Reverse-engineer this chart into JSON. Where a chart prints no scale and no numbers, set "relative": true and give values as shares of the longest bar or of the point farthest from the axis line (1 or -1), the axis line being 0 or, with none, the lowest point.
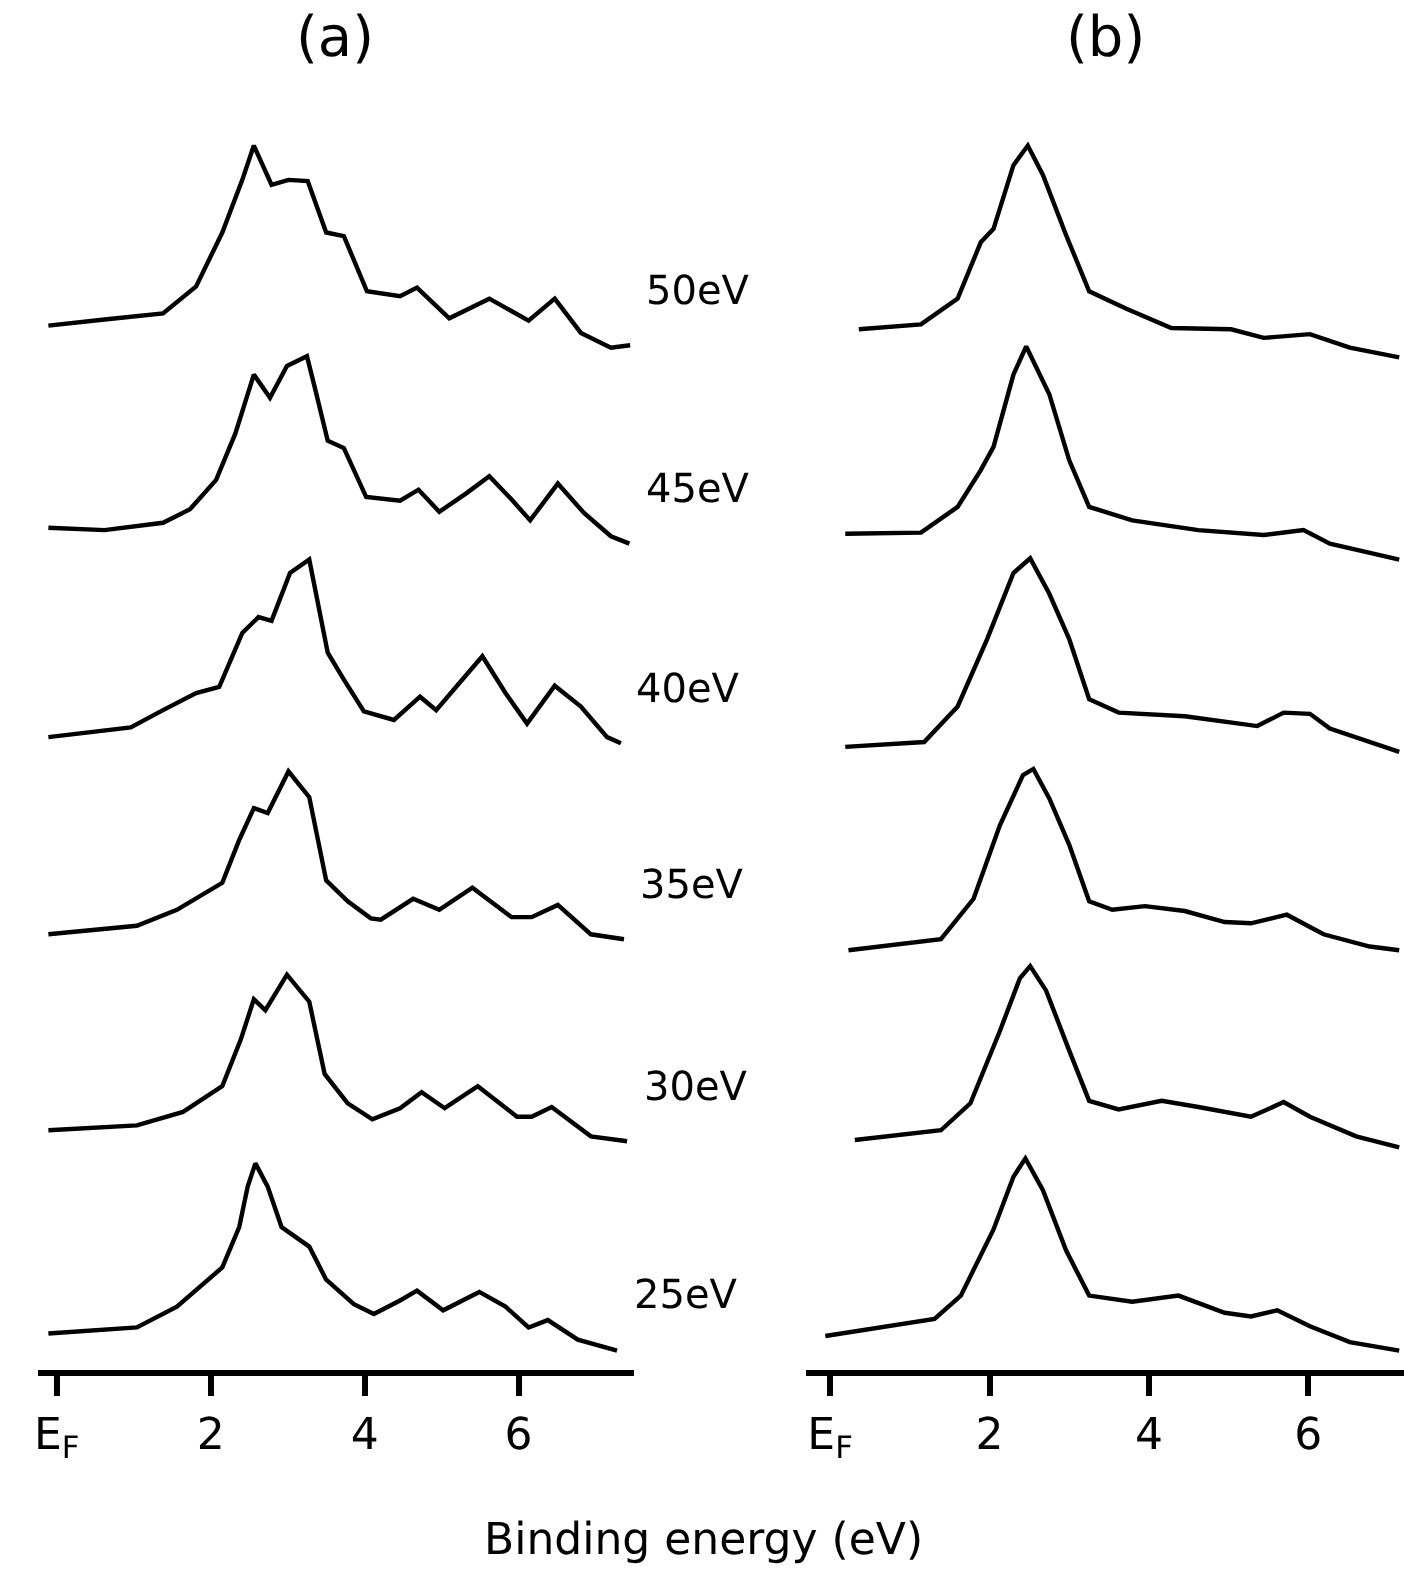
{
  "chart_data": [
    {
      "type": "line",
      "title": "(a)",
      "xlabel": "Binding energy (eV)",
      "relative": true,
      "marker": "none",
      "line_style": "solid",
      "xlim": [
        -0.25,
        7.5
      ],
      "xticks": [
        {
          "value": 0,
          "label": "E$_{F}$"
        },
        2,
        4,
        6
      ],
      "series": [
        {
          "name": "50eV",
          "color": "#000000",
          "x": [
            -0.11,
            0.62,
            1.38,
            1.81,
            2.15,
            2.41,
            2.56,
            2.79,
            3.01,
            3.26,
            3.5,
            3.73,
            4.03,
            4.46,
            4.68,
            5.1,
            5.62,
            6.13,
            6.47,
            6.81,
            7.2,
            7.45
          ],
          "values": [
            0.853,
            0.858,
            0.863,
            0.885,
            0.929,
            0.972,
            1.0,
            0.968,
            0.972,
            0.971,
            0.929,
            0.926,
            0.881,
            0.877,
            0.884,
            0.859,
            0.875,
            0.857,
            0.875,
            0.847,
            0.835,
            0.837
          ]
        },
        {
          "name": "45eV",
          "color": "#000000",
          "x": [
            -0.11,
            0.62,
            1.38,
            1.73,
            2.07,
            2.32,
            2.56,
            2.77,
            2.99,
            3.25,
            3.35,
            3.52,
            3.73,
            4.02,
            4.46,
            4.7,
            4.97,
            5.32,
            5.62,
            5.91,
            6.15,
            6.51,
            6.85,
            7.2,
            7.44
          ],
          "values": [
            0.688,
            0.686,
            0.692,
            0.703,
            0.727,
            0.765,
            0.813,
            0.794,
            0.82,
            0.828,
            0.803,
            0.759,
            0.753,
            0.713,
            0.71,
            0.719,
            0.701,
            0.716,
            0.73,
            0.711,
            0.694,
            0.724,
            0.7,
            0.681,
            0.675
          ]
        },
        {
          "name": "40eV",
          "color": "#000000",
          "x": [
            -0.11,
            0.96,
            1.38,
            1.81,
            2.11,
            2.41,
            2.62,
            2.79,
            3.03,
            3.28,
            3.52,
            3.73,
            3.99,
            4.38,
            4.72,
            4.93,
            5.27,
            5.53,
            5.83,
            6.11,
            6.47,
            6.81,
            7.15,
            7.33
          ],
          "values": [
            0.517,
            0.525,
            0.539,
            0.553,
            0.558,
            0.602,
            0.615,
            0.612,
            0.651,
            0.662,
            0.586,
            0.564,
            0.538,
            0.531,
            0.55,
            0.539,
            0.564,
            0.583,
            0.553,
            0.528,
            0.559,
            0.542,
            0.517,
            0.512
          ]
        },
        {
          "name": "35eV",
          "color": "#000000",
          "x": [
            -0.11,
            1.04,
            1.56,
            2.15,
            2.37,
            2.56,
            2.74,
            3.01,
            3.28,
            3.5,
            3.78,
            4.08,
            4.21,
            4.63,
            4.97,
            5.4,
            5.91,
            6.17,
            6.51,
            6.94,
            7.37
          ],
          "values": [
            0.356,
            0.363,
            0.376,
            0.398,
            0.433,
            0.459,
            0.455,
            0.489,
            0.468,
            0.4,
            0.383,
            0.369,
            0.368,
            0.385,
            0.376,
            0.394,
            0.37,
            0.37,
            0.38,
            0.356,
            0.352
          ]
        },
        {
          "name": "30eV",
          "color": "#000000",
          "x": [
            -0.11,
            1.04,
            1.64,
            2.15,
            2.39,
            2.56,
            2.71,
            2.99,
            3.28,
            3.48,
            3.78,
            4.1,
            4.46,
            4.74,
            5.04,
            5.47,
            5.98,
            6.17,
            6.43,
            6.94,
            7.41
          ],
          "values": [
            0.196,
            0.2,
            0.211,
            0.232,
            0.27,
            0.303,
            0.294,
            0.323,
            0.301,
            0.242,
            0.218,
            0.205,
            0.214,
            0.227,
            0.214,
            0.232,
            0.207,
            0.207,
            0.215,
            0.191,
            0.187
          ]
        },
        {
          "name": "25eV",
          "color": "#000000",
          "x": [
            -0.11,
            1.04,
            1.56,
            2.15,
            2.37,
            2.48,
            2.58,
            2.74,
            2.92,
            3.28,
            3.5,
            3.86,
            4.12,
            4.46,
            4.68,
            5.02,
            5.49,
            5.83,
            6.13,
            6.38,
            6.77,
            7.28
          ],
          "values": [
            0.03,
            0.035,
            0.052,
            0.084,
            0.117,
            0.15,
            0.169,
            0.15,
            0.117,
            0.101,
            0.074,
            0.054,
            0.046,
            0.057,
            0.065,
            0.049,
            0.064,
            0.052,
            0.035,
            0.041,
            0.025,
            0.016
          ]
        }
      ]
    },
    {
      "type": "line",
      "title": "(b)",
      "relative": true,
      "marker": "none",
      "line_style": "solid",
      "xlim": [
        -0.3,
        7.2
      ],
      "xticks": [
        {
          "value": 0,
          "label": "E$_{F}$"
        },
        2,
        4,
        6
      ],
      "series": [
        {
          "color": "#000000",
          "x": [
            0.36,
            1.14,
            1.6,
            1.89,
            2.05,
            2.3,
            2.48,
            2.67,
            2.96,
            3.25,
            3.71,
            4.28,
            5.03,
            5.44,
            6.02,
            6.52,
            7.14
          ],
          "values": [
            0.85,
            0.854,
            0.875,
            0.921,
            0.932,
            0.984,
            1.0,
            0.976,
            0.927,
            0.881,
            0.867,
            0.851,
            0.85,
            0.843,
            0.846,
            0.835,
            0.827
          ]
        },
        {
          "color": "#000000",
          "x": [
            0.19,
            1.14,
            1.6,
            1.89,
            2.05,
            2.3,
            2.46,
            2.75,
            3.0,
            3.25,
            3.79,
            4.62,
            5.44,
            5.94,
            6.27,
            7.14
          ],
          "values": [
            0.683,
            0.684,
            0.705,
            0.735,
            0.754,
            0.813,
            0.836,
            0.797,
            0.743,
            0.705,
            0.694,
            0.686,
            0.682,
            0.686,
            0.675,
            0.662
          ]
        },
        {
          "color": "#000000",
          "x": [
            0.19,
            1.18,
            1.6,
            1.97,
            2.3,
            2.51,
            2.75,
            3.0,
            3.25,
            3.62,
            4.45,
            5.36,
            5.69,
            6.02,
            6.27,
            7.14
          ],
          "values": [
            0.509,
            0.513,
            0.542,
            0.597,
            0.651,
            0.663,
            0.634,
            0.597,
            0.548,
            0.537,
            0.534,
            0.526,
            0.537,
            0.536,
            0.524,
            0.505
          ]
        },
        {
          "color": "#000000",
          "x": [
            0.23,
            1.39,
            1.8,
            2.13,
            2.42,
            2.55,
            2.75,
            3.0,
            3.25,
            3.54,
            3.95,
            4.45,
            4.95,
            5.28,
            5.73,
            6.19,
            6.77,
            7.14
          ],
          "values": [
            0.343,
            0.352,
            0.385,
            0.445,
            0.486,
            0.491,
            0.467,
            0.429,
            0.383,
            0.376,
            0.379,
            0.375,
            0.366,
            0.365,
            0.372,
            0.356,
            0.346,
            0.343
          ]
        },
        {
          "color": "#000000",
          "x": [
            0.31,
            1.39,
            1.76,
            2.13,
            2.38,
            2.51,
            2.71,
            3.0,
            3.25,
            3.62,
            4.16,
            4.62,
            5.28,
            5.69,
            6.02,
            6.6,
            7.14
          ],
          "values": [
            0.188,
            0.196,
            0.218,
            0.277,
            0.32,
            0.33,
            0.31,
            0.261,
            0.22,
            0.213,
            0.22,
            0.215,
            0.207,
            0.219,
            0.207,
            0.191,
            0.182
          ]
        },
        {
          "color": "#000000",
          "x": [
            -0.06,
            1.31,
            1.64,
            2.05,
            2.3,
            2.45,
            2.67,
            2.96,
            3.25,
            3.79,
            4.37,
            4.95,
            5.28,
            5.61,
            6.02,
            6.52,
            7.14
          ],
          "values": [
            0.028,
            0.042,
            0.061,
            0.115,
            0.158,
            0.173,
            0.147,
            0.098,
            0.061,
            0.056,
            0.061,
            0.047,
            0.044,
            0.049,
            0.036,
            0.023,
            0.016
          ]
        }
      ]
    }
  ]
}
